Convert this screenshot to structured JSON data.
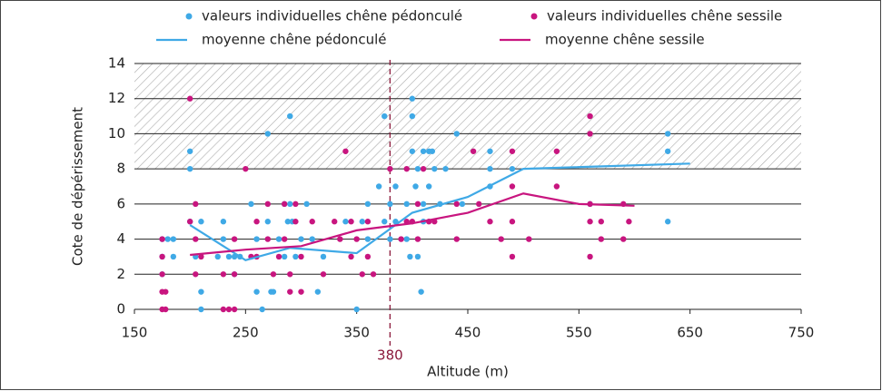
{
  "chart_data": {
    "type": "scatter",
    "x_label": "Altitude (m)",
    "y_label": "Cote de dépérissement",
    "xlim": [
      150,
      750
    ],
    "xticks": [
      150,
      250,
      350,
      450,
      550,
      650,
      750
    ],
    "ylim": [
      0,
      14
    ],
    "yticks": [
      0,
      2,
      4,
      6,
      8,
      10,
      12,
      14
    ],
    "grid": true,
    "shaded_band": [
      8,
      14
    ],
    "reference_x": 380,
    "series": [
      {
        "name": "valeurs individuelles chêne pédonculé",
        "color": "#3fa9e6",
        "kind": "scatter",
        "x": [
          175,
          175,
          175,
          180,
          185,
          185,
          200,
          200,
          200,
          205,
          210,
          210,
          210,
          225,
          230,
          230,
          235,
          240,
          240,
          245,
          255,
          260,
          260,
          265,
          270,
          270,
          273,
          275,
          280,
          285,
          285,
          288,
          290,
          290,
          292,
          295,
          300,
          305,
          310,
          315,
          320,
          340,
          350,
          355,
          360,
          360,
          370,
          375,
          375,
          380,
          380,
          385,
          385,
          395,
          395,
          398,
          400,
          400,
          400,
          403,
          405,
          405,
          408,
          410,
          410,
          410,
          415,
          415,
          418,
          420,
          425,
          430,
          440,
          445,
          470,
          470,
          470,
          490,
          560,
          630,
          630,
          630
        ],
        "values": [
          4,
          3,
          2,
          4,
          4,
          3,
          5,
          9,
          8,
          3,
          5,
          0,
          1,
          3,
          4,
          5,
          3,
          3,
          2,
          3,
          6,
          4,
          1,
          0,
          5,
          10,
          1,
          1,
          4,
          3,
          6,
          5,
          11,
          6,
          5,
          3,
          4,
          6,
          4,
          1,
          3,
          5,
          0,
          5,
          4,
          6,
          7,
          11,
          5,
          6,
          4,
          7,
          5,
          4,
          6,
          3,
          12,
          11,
          9,
          7,
          3,
          8,
          1,
          9,
          6,
          5,
          9,
          7,
          9,
          8,
          6,
          8,
          10,
          6,
          9,
          8,
          7,
          8,
          6,
          10,
          9,
          5
        ]
      },
      {
        "name": "valeurs individuelles chêne sessile",
        "color": "#c8157f",
        "kind": "scatter",
        "x": [
          175,
          175,
          175,
          175,
          175,
          178,
          178,
          200,
          200,
          205,
          205,
          205,
          210,
          230,
          230,
          235,
          240,
          240,
          240,
          250,
          255,
          260,
          260,
          270,
          270,
          275,
          280,
          285,
          285,
          290,
          290,
          295,
          295,
          300,
          300,
          310,
          320,
          330,
          335,
          340,
          345,
          345,
          350,
          355,
          360,
          360,
          365,
          380,
          390,
          395,
          395,
          400,
          405,
          405,
          410,
          415,
          420,
          440,
          440,
          455,
          460,
          470,
          480,
          490,
          490,
          490,
          490,
          505,
          530,
          530,
          560,
          560,
          560,
          560,
          560,
          570,
          570,
          590,
          590,
          595
        ],
        "values": [
          4,
          3,
          2,
          1,
          0,
          1,
          0,
          12,
          5,
          6,
          4,
          2,
          3,
          2,
          0,
          0,
          4,
          0,
          2,
          8,
          3,
          5,
          3,
          6,
          4,
          2,
          3,
          6,
          4,
          2,
          1,
          5,
          6,
          1,
          3,
          5,
          2,
          5,
          4,
          9,
          5,
          3,
          4,
          2,
          5,
          3,
          2,
          8,
          4,
          5,
          8,
          5,
          4,
          6,
          8,
          5,
          5,
          6,
          4,
          9,
          6,
          5,
          4,
          9,
          7,
          5,
          3,
          4,
          9,
          7,
          11,
          10,
          6,
          5,
          3,
          5,
          4,
          6,
          4,
          5
        ]
      },
      {
        "name": "moyenne chêne pédonculé",
        "color": "#3fa9e6",
        "kind": "line",
        "x": [
          200,
          250,
          290,
          350,
          400,
          450,
          500,
          650
        ],
        "values": [
          4.8,
          2.8,
          3.5,
          3.2,
          5.5,
          6.4,
          8.0,
          8.3
        ]
      },
      {
        "name": "moyenne chêne sessile",
        "color": "#c8157f",
        "kind": "line",
        "x": [
          200,
          250,
          300,
          350,
          400,
          450,
          500,
          550,
          600
        ],
        "values": [
          3.1,
          3.4,
          3.6,
          4.5,
          4.9,
          5.5,
          6.6,
          6.0,
          5.9
        ]
      }
    ]
  }
}
